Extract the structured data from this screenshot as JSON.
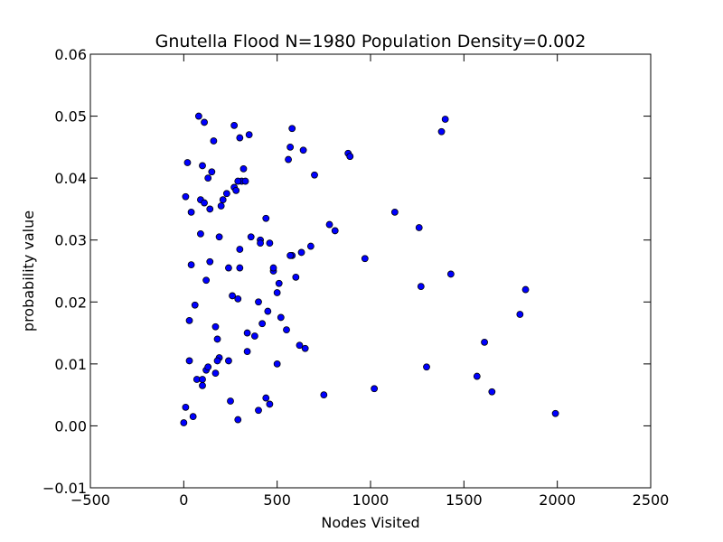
{
  "chart_data": {
    "type": "scatter",
    "title": "Gnutella Flood N=1980 Population Density=0.002",
    "xlabel": "Nodes Visited",
    "ylabel": "probability value",
    "xlim": [
      -500,
      2500
    ],
    "ylim": [
      -0.01,
      0.06
    ],
    "xticks": [
      -500,
      0,
      500,
      1000,
      1500,
      2000,
      2500
    ],
    "xtick_labels": [
      "−500",
      "0",
      "500",
      "1000",
      "1500",
      "2000",
      "2500"
    ],
    "yticks": [
      -0.01,
      0,
      0.01,
      0.02,
      0.03,
      0.04,
      0.05,
      0.06
    ],
    "ytick_labels": [
      "−0.01",
      "0.00",
      "0.01",
      "0.02",
      "0.03",
      "0.04",
      "0.05",
      "0.06"
    ],
    "grid": false,
    "marker_color": "#0000ff",
    "marker_edge": "#000000",
    "x": [
      0,
      10,
      20,
      30,
      40,
      50,
      60,
      70,
      80,
      90,
      100,
      110,
      120,
      130,
      140,
      150,
      160,
      170,
      180,
      190,
      200,
      210,
      230,
      250,
      270,
      290,
      300,
      320,
      340,
      360,
      380,
      400,
      420,
      440,
      460,
      480,
      500,
      520,
      550,
      580,
      600,
      620,
      650,
      680,
      700,
      750,
      780,
      810,
      880,
      970,
      1020,
      1130,
      1260,
      1270,
      1300,
      1380,
      1400,
      1430,
      1570,
      1610,
      1650,
      1800,
      1830,
      1990,
      270,
      300,
      560,
      580,
      890,
      310,
      90,
      170,
      30,
      110,
      240,
      140,
      10,
      40,
      350,
      440,
      400,
      630,
      120,
      290,
      450,
      510,
      410,
      260,
      180,
      340,
      640,
      570,
      480,
      330,
      500,
      100,
      130,
      290,
      460,
      410,
      570,
      890,
      100,
      240,
      300,
      190,
      280
    ],
    "y": [
      0.0005,
      0.003,
      0.0425,
      0.017,
      0.026,
      0.0015,
      0.0195,
      0.0075,
      0.05,
      0.031,
      0.042,
      0.049,
      0.009,
      0.04,
      0.0265,
      0.041,
      0.046,
      0.0085,
      0.014,
      0.011,
      0.0355,
      0.0365,
      0.0375,
      0.004,
      0.0385,
      0.001,
      0.0285,
      0.0415,
      0.015,
      0.0305,
      0.0145,
      0.0025,
      0.0165,
      0.0045,
      0.0035,
      0.025,
      0.01,
      0.0175,
      0.0155,
      0.0275,
      0.024,
      0.013,
      0.0125,
      0.029,
      0.0405,
      0.005,
      0.0325,
      0.0315,
      0.044,
      0.027,
      0.006,
      0.0345,
      0.032,
      0.0225,
      0.0095,
      0.0475,
      0.0495,
      0.0245,
      0.008,
      0.0135,
      0.0055,
      0.018,
      0.022,
      0.002,
      0.0485,
      0.0465,
      0.043,
      0.048,
      0.0435,
      0.0395,
      0.0365,
      0.016,
      0.0105,
      0.036,
      0.0255,
      0.035,
      0.037,
      0.0345,
      0.047,
      0.0335,
      0.02,
      0.028,
      0.0235,
      0.0205,
      0.0185,
      0.023,
      0.03,
      0.021,
      0.0105,
      0.012,
      0.0445,
      0.045,
      0.0255,
      0.0395,
      0.0215,
      0.0065,
      0.0095,
      0.0395,
      0.0295,
      0.0295,
      0.0275,
      0.0435,
      0.0075,
      0.0105,
      0.0255,
      0.0305,
      0.038
    ]
  }
}
